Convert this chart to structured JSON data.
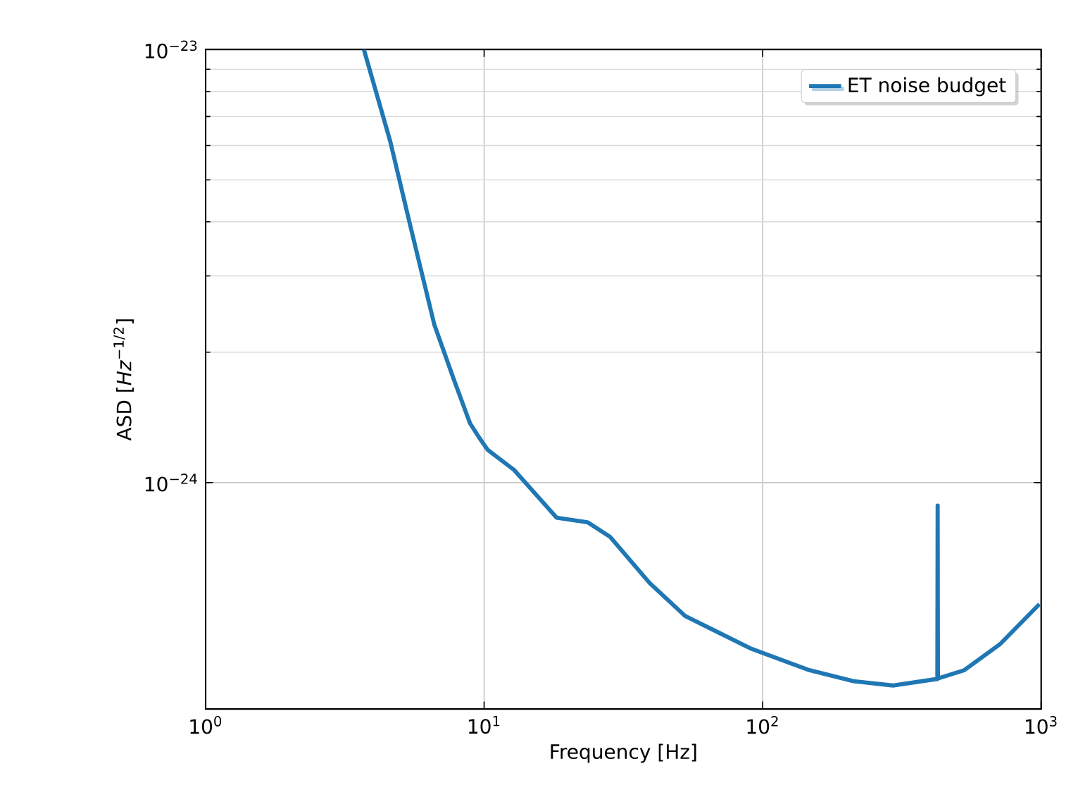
{
  "chart_data": {
    "type": "line",
    "xlabel": "Frequency [Hz]",
    "ylabel": "ASD [*Hz*$^{−1/2}$]",
    "log": "xy",
    "grid": true,
    "legend": "top right",
    "marker": "none",
    "line_style": "solid",
    "xlim": [
      1,
      1000
    ],
    "ylim": [
      3e-25,
      1e-23
    ],
    "xticks": [
      {
        "value": 1,
        "label": "10$^{0}$"
      },
      {
        "value": 10,
        "label": "10$^{1}$"
      },
      {
        "value": 100,
        "label": "10$^{2}$"
      },
      {
        "value": 1000,
        "label": "10$^{3}$"
      }
    ],
    "yticks": [
      {
        "value": 1e-24,
        "label": "10$^{−24}$"
      },
      {
        "value": 1e-23,
        "label": "10$^{−23}$"
      }
    ],
    "series": [
      {
        "name": "ET noise budget",
        "color": "#1f77b4",
        "x": [
          3.7,
          4.6,
          5.43,
          6.62,
          7.81,
          8.9,
          9.6,
          10.3,
          12.8,
          18.2,
          23.5,
          28.3,
          39.3,
          52.7,
          91.3,
          147,
          212,
          294,
          410,
          424,
          425,
          426,
          530,
          710,
          986
        ],
        "values": [
          1e-23,
          6.14e-24,
          3.92e-24,
          2.32e-24,
          1.72e-24,
          1.37e-24,
          1.27e-24,
          1.19e-24,
          1.07e-24,
          8.3e-25,
          8.1e-25,
          7.5e-25,
          5.86e-25,
          4.92e-25,
          4.13e-25,
          3.69e-25,
          3.48e-25,
          3.4e-25,
          3.51e-25,
          3.52e-25,
          8.85e-25,
          3.53e-25,
          3.69e-25,
          4.23e-25,
          5.24e-25
        ]
      }
    ]
  }
}
